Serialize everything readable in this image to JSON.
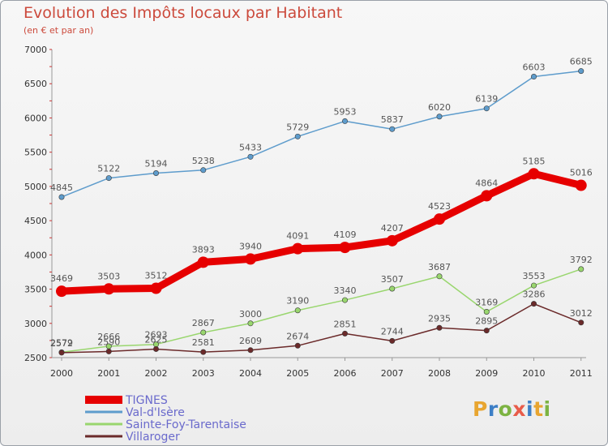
{
  "title": "Evolution des Impôts locaux par Habitant",
  "subtitle": "(en € et par an)",
  "logo": {
    "text": "Proxiti",
    "colors": [
      "#e8a530",
      "#3d7fc6",
      "#7cb342",
      "#e85c4a",
      "#3d7fc6",
      "#e8a530",
      "#7cb342"
    ]
  },
  "chart_data": {
    "type": "line",
    "x": [
      "2000",
      "2001",
      "2002",
      "2003",
      "2004",
      "2005",
      "2006",
      "2007",
      "2008",
      "2009",
      "2010",
      "2011"
    ],
    "ylim": [
      2500,
      7000
    ],
    "yticks": [
      "7000",
      "6500",
      "6000",
      "5500",
      "5000",
      "4500",
      "4000",
      "3500",
      "3000",
      "2500"
    ],
    "grid": false,
    "legend_position": "bottom-left",
    "series": [
      {
        "name": "TIGNES",
        "color": "#e60000",
        "emphasis": true,
        "values": [
          3469,
          3503,
          3512,
          3893,
          3940,
          4091,
          4109,
          4207,
          4523,
          4864,
          5185,
          5016
        ]
      },
      {
        "name": "Val-d'Isère",
        "color": "#5e9ccc",
        "emphasis": false,
        "values": [
          4845,
          5122,
          5194,
          5238,
          5433,
          5729,
          5953,
          5837,
          6020,
          6139,
          6603,
          6685
        ]
      },
      {
        "name": "Sainte-Foy-Tarentaise",
        "color": "#99d66e",
        "emphasis": false,
        "values": [
          2579,
          2666,
          2693,
          2867,
          3000,
          3190,
          3340,
          3507,
          3687,
          3169,
          3553,
          3792
        ]
      },
      {
        "name": "Villaroger",
        "color": "#6b2a2a",
        "emphasis": false,
        "values": [
          2572,
          2590,
          2625,
          2581,
          2609,
          2674,
          2851,
          2744,
          2935,
          2895,
          3286,
          3012
        ]
      }
    ]
  }
}
